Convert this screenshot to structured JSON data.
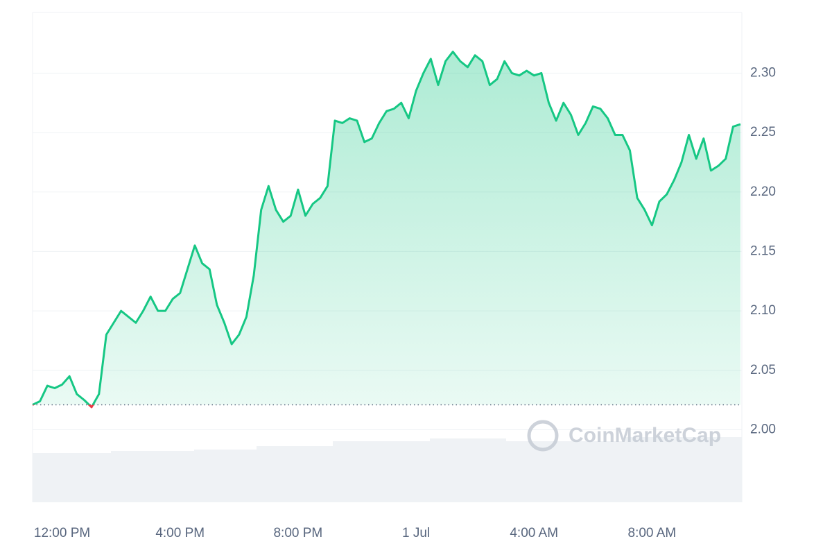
{
  "chart_data": {
    "type": "line",
    "color": "#16c784",
    "below_color": "#ea3943",
    "baseline": 2.021,
    "watermark": "CoinMarketCap",
    "categories": [
      null,
      null,
      null,
      null,
      "12:00 PM",
      null,
      null,
      null,
      null,
      null,
      null,
      null,
      null,
      null,
      null,
      null,
      null,
      null,
      null,
      null,
      "4:00 PM",
      null,
      null,
      null,
      null,
      null,
      null,
      null,
      null,
      null,
      null,
      null,
      null,
      null,
      null,
      null,
      "8:00 PM",
      null,
      null,
      null,
      null,
      null,
      null,
      null,
      null,
      null,
      null,
      null,
      null,
      null,
      null,
      null,
      "1 Jul",
      null,
      null,
      null,
      null,
      null,
      null,
      null,
      null,
      null,
      null,
      null,
      null,
      null,
      null,
      null,
      "4:00 AM",
      null,
      null,
      null,
      null,
      null,
      null,
      null,
      null,
      null,
      null,
      null,
      null,
      null,
      null,
      null,
      "8:00 AM",
      null,
      null,
      null,
      null,
      null,
      null,
      null,
      null,
      null,
      null,
      null,
      null
    ],
    "values": [
      2.021,
      2.024,
      2.037,
      2.035,
      2.038,
      2.045,
      2.03,
      2.025,
      2.019,
      2.03,
      2.08,
      2.09,
      2.1,
      2.095,
      2.09,
      2.1,
      2.112,
      2.1,
      2.1,
      2.11,
      2.115,
      2.135,
      2.155,
      2.14,
      2.135,
      2.105,
      2.09,
      2.072,
      2.08,
      2.095,
      2.13,
      2.185,
      2.205,
      2.185,
      2.175,
      2.18,
      2.202,
      2.18,
      2.19,
      2.195,
      2.205,
      2.26,
      2.258,
      2.262,
      2.26,
      2.242,
      2.245,
      2.258,
      2.268,
      2.27,
      2.275,
      2.262,
      2.285,
      2.3,
      2.312,
      2.29,
      2.31,
      2.318,
      2.31,
      2.305,
      2.315,
      2.31,
      2.29,
      2.295,
      2.31,
      2.3,
      2.298,
      2.302,
      2.298,
      2.3,
      2.275,
      2.26,
      2.275,
      2.265,
      2.248,
      2.258,
      2.272,
      2.27,
      2.262,
      2.248,
      2.248,
      2.235,
      2.195,
      2.185,
      2.172,
      2.192,
      2.198,
      2.21,
      2.225,
      2.248,
      2.228,
      2.245,
      2.218,
      2.222,
      2.228,
      2.255,
      2.257
    ],
    "ylim": [
      1.939,
      2.351
    ],
    "yticks": [
      {
        "value": 2.0,
        "label": "2.00"
      },
      {
        "value": 2.05,
        "label": "2.05"
      },
      {
        "value": 2.1,
        "label": "2.10"
      },
      {
        "value": 2.15,
        "label": "2.15"
      },
      {
        "value": 2.2,
        "label": "2.20"
      },
      {
        "value": 2.25,
        "label": "2.25"
      },
      {
        "value": 2.3,
        "label": "2.30"
      }
    ],
    "grid": true
  }
}
